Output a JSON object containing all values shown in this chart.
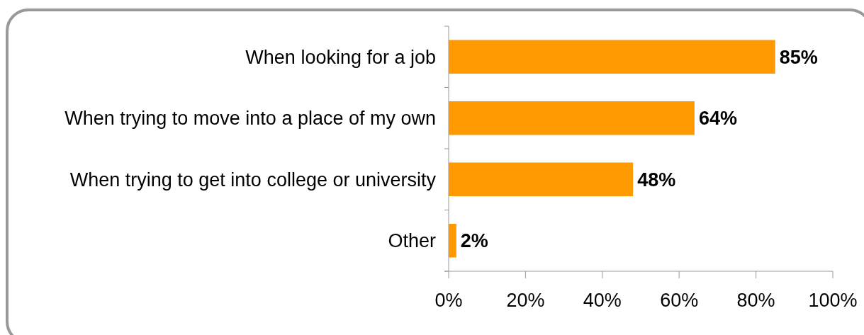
{
  "chart_data": {
    "type": "bar",
    "orientation": "horizontal",
    "categories": [
      "When looking for a job",
      "When trying to move into a place of my own",
      "When trying to get into college or university",
      "Other"
    ],
    "values": [
      85,
      64,
      48,
      2
    ],
    "value_labels": [
      "85%",
      "64%",
      "48%",
      "2%"
    ],
    "color": "#ff9900",
    "xlim": [
      0,
      100
    ],
    "xticks": [
      {
        "value": 0,
        "label": "0%"
      },
      {
        "value": 20,
        "label": "20%"
      },
      {
        "value": 40,
        "label": "40%"
      },
      {
        "value": 60,
        "label": "60%"
      },
      {
        "value": 80,
        "label": "80%"
      },
      {
        "value": 100,
        "label": "100%"
      }
    ],
    "grid": false
  }
}
